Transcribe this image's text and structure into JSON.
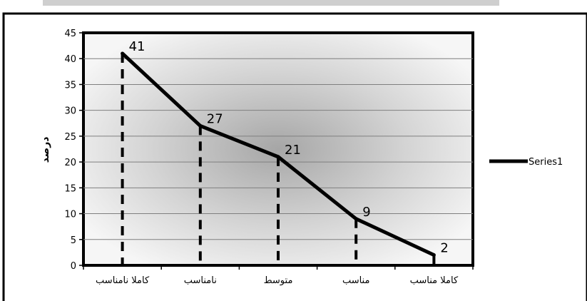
{
  "chart_data": {
    "type": "line",
    "categories": [
      "کاملا نامناسب",
      "نامناسب",
      "متوسط",
      "مناسب",
      "کاملا مناسب"
    ],
    "series": [
      {
        "name": "Series1",
        "values": [
          41,
          27,
          21,
          9,
          2
        ]
      }
    ],
    "data_labels": [
      "41",
      "27",
      "21",
      "9",
      "2"
    ],
    "y_ticks": [
      "0",
      "5",
      "10",
      "15",
      "20",
      "25",
      "30",
      "35",
      "40",
      "45"
    ],
    "ylim": [
      0,
      45
    ],
    "ylabel": "درصد",
    "xlabel": "",
    "title": "",
    "grid": true,
    "drop_lines": true,
    "legend_position": "right",
    "line_color": "#000000",
    "plot_background": "radial-gray-gradient"
  }
}
